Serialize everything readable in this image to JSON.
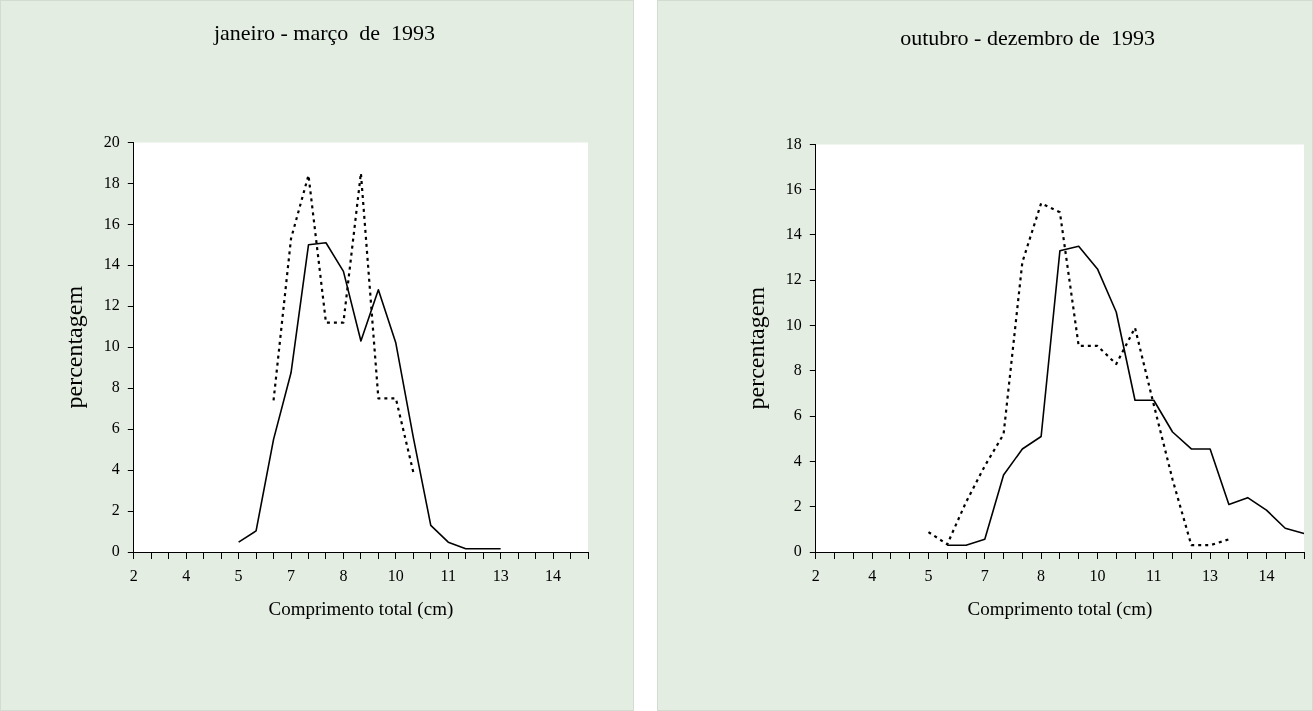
{
  "chart_data": [
    {
      "type": "line",
      "title": "janeiro - março  de  1993",
      "xlabel": "Comprimento total (cm)",
      "ylabel": "percentagem",
      "categories": [
        "2",
        null,
        null,
        "4",
        null,
        null,
        "5",
        null,
        null,
        "7",
        null,
        null,
        "8",
        null,
        null,
        "10",
        null,
        null,
        "11",
        null,
        null,
        "13",
        null,
        null,
        "14",
        null,
        null
      ],
      "ylim": [
        0,
        20
      ],
      "yticks": [
        0,
        2,
        4,
        6,
        8,
        10,
        12,
        14,
        16,
        18,
        20
      ],
      "grid": false,
      "legend": false,
      "marker": "none",
      "series": [
        {
          "color": "#000000",
          "line_style": "solid",
          "values": [
            null,
            null,
            null,
            null,
            null,
            null,
            0.48,
            1.03,
            5.5,
            8.75,
            15.0,
            15.1,
            13.7,
            10.3,
            12.8,
            10.2,
            5.6,
            1.3,
            0.48,
            0.16,
            0.16,
            0.16,
            null,
            null,
            null,
            null,
            null
          ]
        },
        {
          "color": "#000000",
          "line_style": "dotted",
          "values": [
            null,
            null,
            null,
            null,
            null,
            null,
            null,
            null,
            7.4,
            15.3,
            18.4,
            11.2,
            11.2,
            18.5,
            7.5,
            7.5,
            3.9,
            null,
            null,
            null,
            null,
            null,
            null,
            null,
            null,
            null,
            null
          ]
        }
      ]
    },
    {
      "type": "line",
      "title": "outubro - dezembro de  1993",
      "xlabel": "Comprimento total (cm)",
      "ylabel": "percentagem",
      "categories": [
        "2",
        null,
        null,
        "4",
        null,
        null,
        "5",
        null,
        null,
        "7",
        null,
        null,
        "8",
        null,
        null,
        "10",
        null,
        null,
        "11",
        null,
        null,
        "13",
        null,
        null,
        "14",
        null,
        null
      ],
      "ylim": [
        0,
        18
      ],
      "yticks": [
        0,
        2,
        4,
        6,
        8,
        10,
        12,
        14,
        16,
        18
      ],
      "grid": false,
      "legend": false,
      "marker": "none",
      "series": [
        {
          "color": "#000000",
          "line_style": "solid",
          "values": [
            null,
            null,
            null,
            null,
            null,
            null,
            null,
            0.3,
            0.3,
            0.56,
            3.4,
            4.55,
            5.1,
            13.3,
            13.5,
            12.5,
            10.6,
            6.7,
            6.7,
            5.3,
            4.55,
            4.55,
            2.1,
            2.4,
            1.85,
            1.05,
            0.82
          ]
        },
        {
          "color": "#000000",
          "line_style": "dotted",
          "values": [
            null,
            null,
            null,
            null,
            null,
            null,
            0.88,
            0.34,
            2.2,
            3.8,
            5.2,
            12.8,
            15.4,
            15.0,
            9.1,
            9.1,
            8.3,
            9.9,
            6.5,
            3.2,
            0.3,
            0.3,
            0.56,
            null,
            null,
            null,
            null
          ]
        }
      ]
    }
  ]
}
